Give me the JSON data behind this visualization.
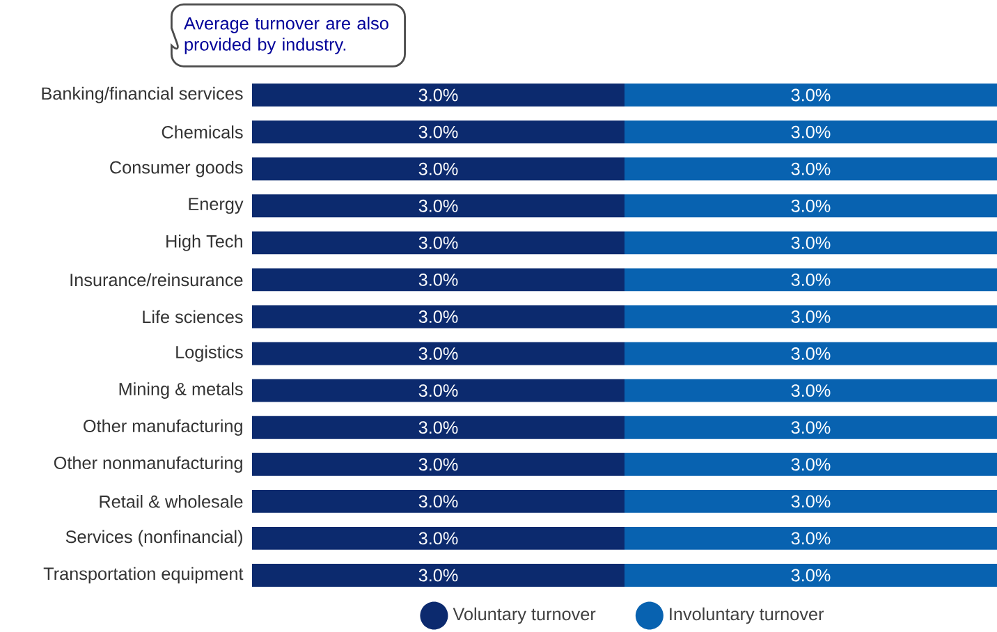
{
  "chart_data": {
    "type": "bar",
    "orientation": "horizontal",
    "stacked": true,
    "categories": [
      "Banking/financial services",
      "Chemicals",
      "Consumer goods",
      "Energy",
      "High Tech",
      "Insurance/reinsurance",
      "Life sciences",
      "Logistics",
      "Mining & metals",
      "Other manufacturing",
      "Other nonmanufacturing",
      "Retail & wholesale",
      "Services (nonfinancial)",
      "Transportation equipment"
    ],
    "series": [
      {
        "name": "Voluntary turnover",
        "color": "#0c2a6e",
        "values": [
          3.0,
          3.0,
          3.0,
          3.0,
          3.0,
          3.0,
          3.0,
          3.0,
          3.0,
          3.0,
          3.0,
          3.0,
          3.0,
          3.0
        ],
        "value_labels": [
          "3.0%",
          "3.0%",
          "3.0%",
          "3.0%",
          "3.0%",
          "3.0%",
          "3.0%",
          "3.0%",
          "3.0%",
          "3.0%",
          "3.0%",
          "3.0%",
          "3.0%",
          "3.0%"
        ]
      },
      {
        "name": "Involuntary turnover",
        "color": "#0862b0",
        "values": [
          3.0,
          3.0,
          3.0,
          3.0,
          3.0,
          3.0,
          3.0,
          3.0,
          3.0,
          3.0,
          3.0,
          3.0,
          3.0,
          3.0
        ],
        "value_labels": [
          "3.0%",
          "3.0%",
          "3.0%",
          "3.0%",
          "3.0%",
          "3.0%",
          "3.0%",
          "3.0%",
          "3.0%",
          "3.0%",
          "3.0%",
          "3.0%",
          "3.0%",
          "3.0%"
        ]
      }
    ],
    "legend": "bottom",
    "tick_labels": "y",
    "annotations": [
      "Average turnover are also provided by industry."
    ]
  }
}
